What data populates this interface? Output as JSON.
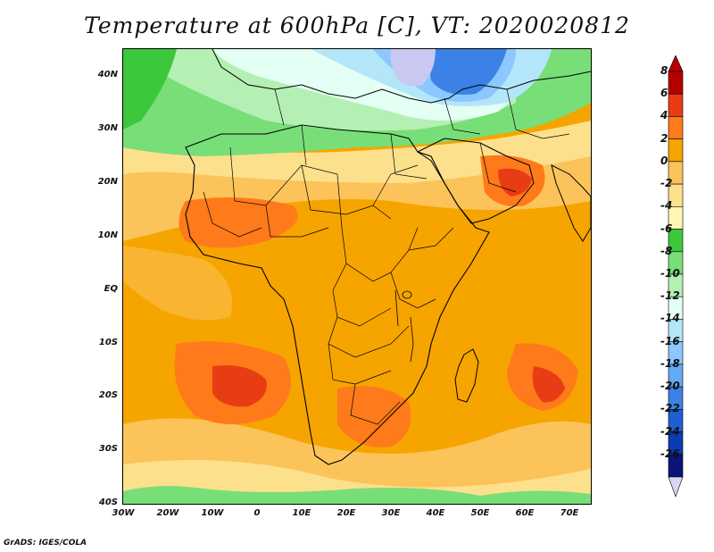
{
  "title": "Temperature at 600hPa [C], VT: 2020020812",
  "credit": "GrADS: IGES/COLA",
  "axes": {
    "lat_labels": [
      "40N",
      "30N",
      "20N",
      "10N",
      "EQ",
      "10S",
      "20S",
      "30S",
      "40S"
    ],
    "lon_labels": [
      "30W",
      "20W",
      "10W",
      "0",
      "10E",
      "20E",
      "30E",
      "40E",
      "50E",
      "60E",
      "70E"
    ]
  },
  "colorbar": {
    "labels": [
      "8",
      "6",
      "4",
      "2",
      "0",
      "-2",
      "-4",
      "-6",
      "-8",
      "-10",
      "-12",
      "-14",
      "-16",
      "-18",
      "-20",
      "-22",
      "-24",
      "-26"
    ],
    "colors": [
      "#b40000",
      "#e83c14",
      "#ff7a1a",
      "#f6a400",
      "#fcc35a",
      "#fde08c",
      "#fff7b4",
      "#3cc83c",
      "#78de78",
      "#b4f0b4",
      "#e4fff4",
      "#b4e6fa",
      "#8cc8ff",
      "#64aaf0",
      "#3c82e6",
      "#1e5fd2",
      "#0a3cb4",
      "#0a1478"
    ]
  },
  "map": {
    "projection": "lat-lon",
    "lon_range": [
      "30W",
      "75E"
    ],
    "lat_range": [
      "40S",
      "45N"
    ],
    "colormap": "temperature"
  }
}
